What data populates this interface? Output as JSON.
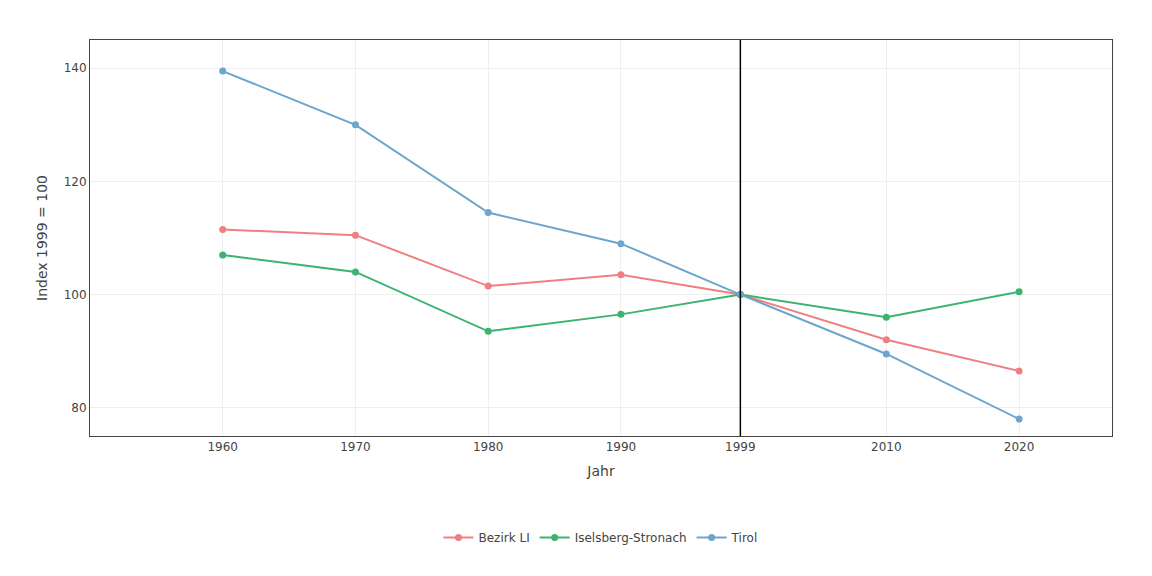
{
  "chart_data": {
    "type": "line",
    "x": [
      1960,
      1970,
      1980,
      1990,
      1999,
      2010,
      2020
    ],
    "series": [
      {
        "name": "Bezirk LI",
        "color": "#F08080",
        "marker": "circle",
        "line_style": "solid",
        "values": [
          111.5,
          110.5,
          101.5,
          103.5,
          100,
          92,
          86.5
        ]
      },
      {
        "name": "Iselsberg-Stronach",
        "color": "#3CB371",
        "marker": "circle",
        "line_style": "solid",
        "values": [
          107,
          104,
          93.5,
          96.5,
          100,
          96,
          100.5
        ]
      },
      {
        "name": "Tirol",
        "color": "#6CA6CD",
        "marker": "circle",
        "line_style": "solid",
        "values": [
          139.5,
          130,
          114.5,
          109,
          100,
          89.5,
          78
        ]
      }
    ],
    "xlabel": "Jahr",
    "ylabel": "Index 1999 = 100",
    "xlim": [
      1950,
      2027
    ],
    "ylim": [
      75,
      145
    ],
    "xticks": [
      1960,
      1970,
      1980,
      1990,
      1999,
      2010,
      2020
    ],
    "yticks": [
      80,
      100,
      120,
      140
    ],
    "vline": 1999,
    "grid": true,
    "legend": "bottom"
  }
}
